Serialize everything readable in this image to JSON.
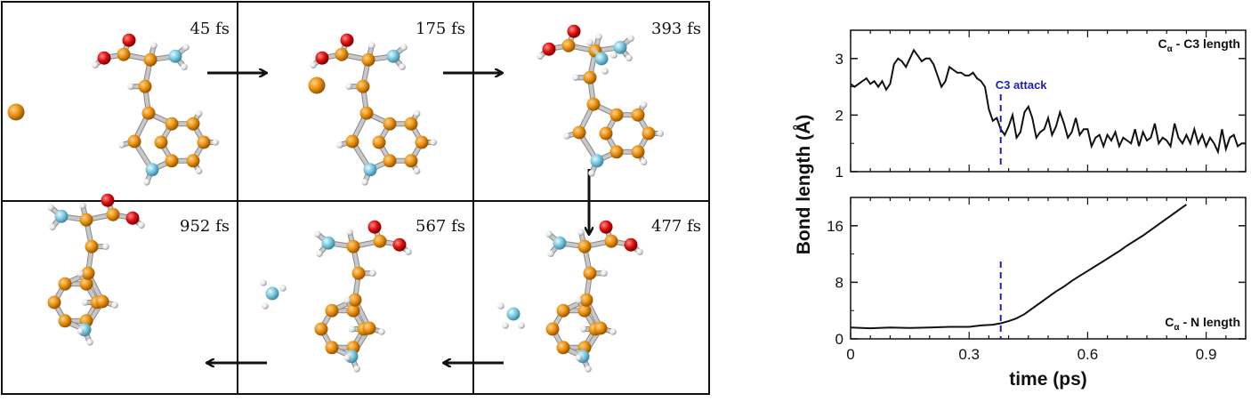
{
  "frames": [
    {
      "time": "45 fs"
    },
    {
      "time": "175 fs"
    },
    {
      "time": "393 fs"
    },
    {
      "time": "477 fs"
    },
    {
      "time": "567 fs"
    },
    {
      "time": "952 fs"
    }
  ],
  "atom_colors": {
    "C": "#e8900f",
    "O": "#dc1010",
    "N": "#7cc6de",
    "H": "#eeeeee",
    "bond": "#c8c8c8"
  },
  "chart_data": [
    {
      "type": "line",
      "ylabel": "Bond length (Å)",
      "xlim": [
        0,
        1.0
      ],
      "ylim": [
        1,
        3.5
      ],
      "yticks": [
        1,
        2,
        3
      ],
      "annotation_text": "C3 attack",
      "annotation_x": 0.38,
      "label_main": "C",
      "label_sub": "α",
      "label_rest": " - C3 length",
      "series": [
        {
          "x": [
            0,
            0.01,
            0.02,
            0.03,
            0.04,
            0.05,
            0.06,
            0.07,
            0.08,
            0.09,
            0.1,
            0.11,
            0.12,
            0.13,
            0.14,
            0.15,
            0.16,
            0.17,
            0.18,
            0.19,
            0.2,
            0.21,
            0.22,
            0.23,
            0.24,
            0.25,
            0.26,
            0.27,
            0.28,
            0.29,
            0.3,
            0.31,
            0.32,
            0.33,
            0.34,
            0.35,
            0.36,
            0.37,
            0.38,
            0.39,
            0.4,
            0.41,
            0.42,
            0.43,
            0.44,
            0.45,
            0.46,
            0.47,
            0.48,
            0.49,
            0.5,
            0.51,
            0.52,
            0.53,
            0.54,
            0.55,
            0.56,
            0.57,
            0.58,
            0.59,
            0.6,
            0.61,
            0.62,
            0.63,
            0.64,
            0.65,
            0.66,
            0.67,
            0.68,
            0.69,
            0.7,
            0.71,
            0.72,
            0.73,
            0.74,
            0.75,
            0.76,
            0.77,
            0.78,
            0.79,
            0.8,
            0.81,
            0.82,
            0.83,
            0.84,
            0.85,
            0.86,
            0.87,
            0.88,
            0.89,
            0.9,
            0.91,
            0.92,
            0.93,
            0.94,
            0.95,
            0.96,
            0.97,
            0.98,
            0.99,
            1.0
          ],
          "y": [
            2.55,
            2.5,
            2.55,
            2.6,
            2.65,
            2.55,
            2.6,
            2.5,
            2.6,
            2.45,
            2.55,
            2.9,
            3.0,
            2.95,
            2.85,
            3.0,
            3.15,
            3.05,
            2.95,
            3.0,
            3.0,
            2.9,
            2.7,
            2.5,
            2.6,
            2.85,
            2.8,
            2.75,
            2.75,
            2.7,
            2.7,
            2.75,
            2.65,
            2.6,
            2.5,
            2.1,
            1.9,
            1.95,
            1.75,
            1.65,
            1.8,
            2.0,
            1.6,
            1.7,
            2.05,
            2.15,
            1.95,
            1.6,
            1.7,
            1.75,
            1.95,
            1.65,
            1.8,
            2.05,
            1.85,
            1.6,
            1.7,
            1.95,
            1.65,
            1.75,
            1.75,
            1.45,
            1.6,
            1.65,
            1.45,
            1.65,
            1.55,
            1.7,
            1.45,
            1.6,
            1.55,
            1.5,
            1.75,
            1.45,
            1.7,
            1.55,
            1.6,
            1.85,
            1.5,
            1.6,
            1.55,
            1.45,
            1.85,
            1.6,
            1.5,
            1.65,
            1.5,
            1.75,
            1.5,
            1.65,
            1.45,
            1.6,
            1.5,
            1.35,
            1.75,
            1.4,
            1.6,
            1.65,
            1.45,
            1.5,
            1.5
          ]
        }
      ]
    },
    {
      "type": "line",
      "xlabel": "time (ps)",
      "xlim": [
        0,
        1.0
      ],
      "xticks": [
        0,
        0.3,
        0.6,
        0.9
      ],
      "xtick_labels": [
        "0",
        "0.3",
        "0.6",
        "0.9"
      ],
      "ylim": [
        0,
        20
      ],
      "yticks": [
        0,
        8,
        16
      ],
      "annotation_x": 0.38,
      "label_main": "C",
      "label_sub": "α",
      "label_rest": " - N length",
      "series": [
        {
          "x": [
            0,
            0.05,
            0.1,
            0.15,
            0.2,
            0.25,
            0.3,
            0.33,
            0.36,
            0.38,
            0.4,
            0.42,
            0.44,
            0.46,
            0.48,
            0.5,
            0.52,
            0.54,
            0.56,
            0.58,
            0.6,
            0.62,
            0.64,
            0.66,
            0.68,
            0.7,
            0.72,
            0.74,
            0.76,
            0.78,
            0.8,
            0.82,
            0.84,
            0.85
          ],
          "y": [
            1.6,
            1.5,
            1.6,
            1.55,
            1.6,
            1.7,
            1.7,
            1.9,
            2.0,
            2.2,
            2.5,
            2.9,
            3.5,
            4.3,
            5.1,
            5.9,
            6.7,
            7.4,
            8.2,
            8.9,
            9.6,
            10.3,
            11.0,
            11.7,
            12.4,
            13.2,
            13.9,
            14.6,
            15.4,
            16.2,
            17.0,
            17.8,
            18.6,
            19.0
          ]
        }
      ]
    }
  ]
}
